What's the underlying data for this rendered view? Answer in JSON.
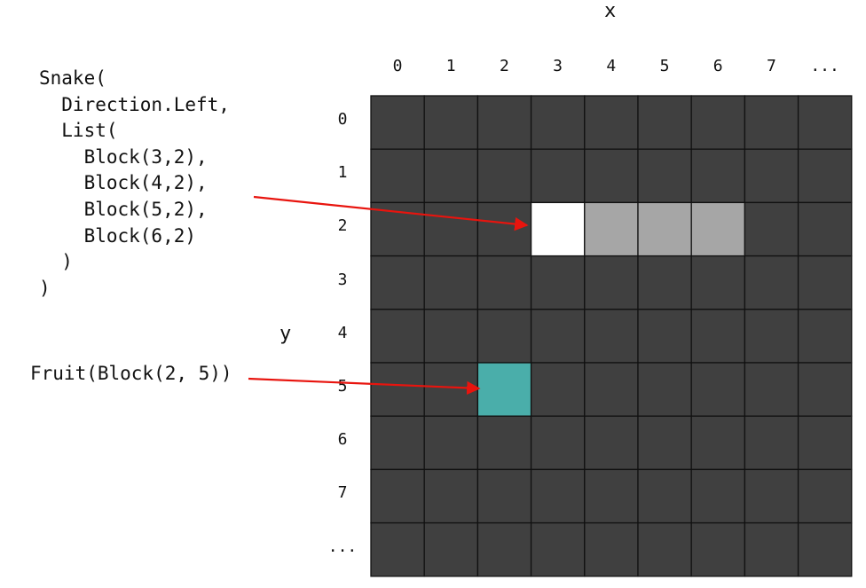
{
  "axes": {
    "x_title": "x",
    "y_title": "y",
    "col_ticks": [
      "0",
      "1",
      "2",
      "3",
      "4",
      "5",
      "6",
      "7",
      "..."
    ],
    "row_ticks": [
      "0",
      "1",
      "2",
      "3",
      "4",
      "5",
      "6",
      "7",
      "..."
    ]
  },
  "snake_code": [
    "Snake(",
    "  Direction.Left,",
    "  List(",
    "    Block(3,2),",
    "    Block(4,2),",
    "    Block(5,2),",
    "    Block(6,2)",
    "  )",
    ")"
  ],
  "fruit_code": "Fruit(Block(2, 5))",
  "grid": {
    "columns": 9,
    "rows": 9,
    "empty_color": "#404040",
    "line_color": "#111111",
    "head_color": "#ffffff",
    "body_color": "#a6a6a6",
    "fruit_color": "#4aaeaa",
    "snake_head": [
      3,
      2
    ],
    "snake_body": [
      [
        4,
        2
      ],
      [
        5,
        2
      ],
      [
        6,
        2
      ]
    ],
    "fruit": [
      2,
      5
    ]
  },
  "arrow_color": "#e8140e"
}
